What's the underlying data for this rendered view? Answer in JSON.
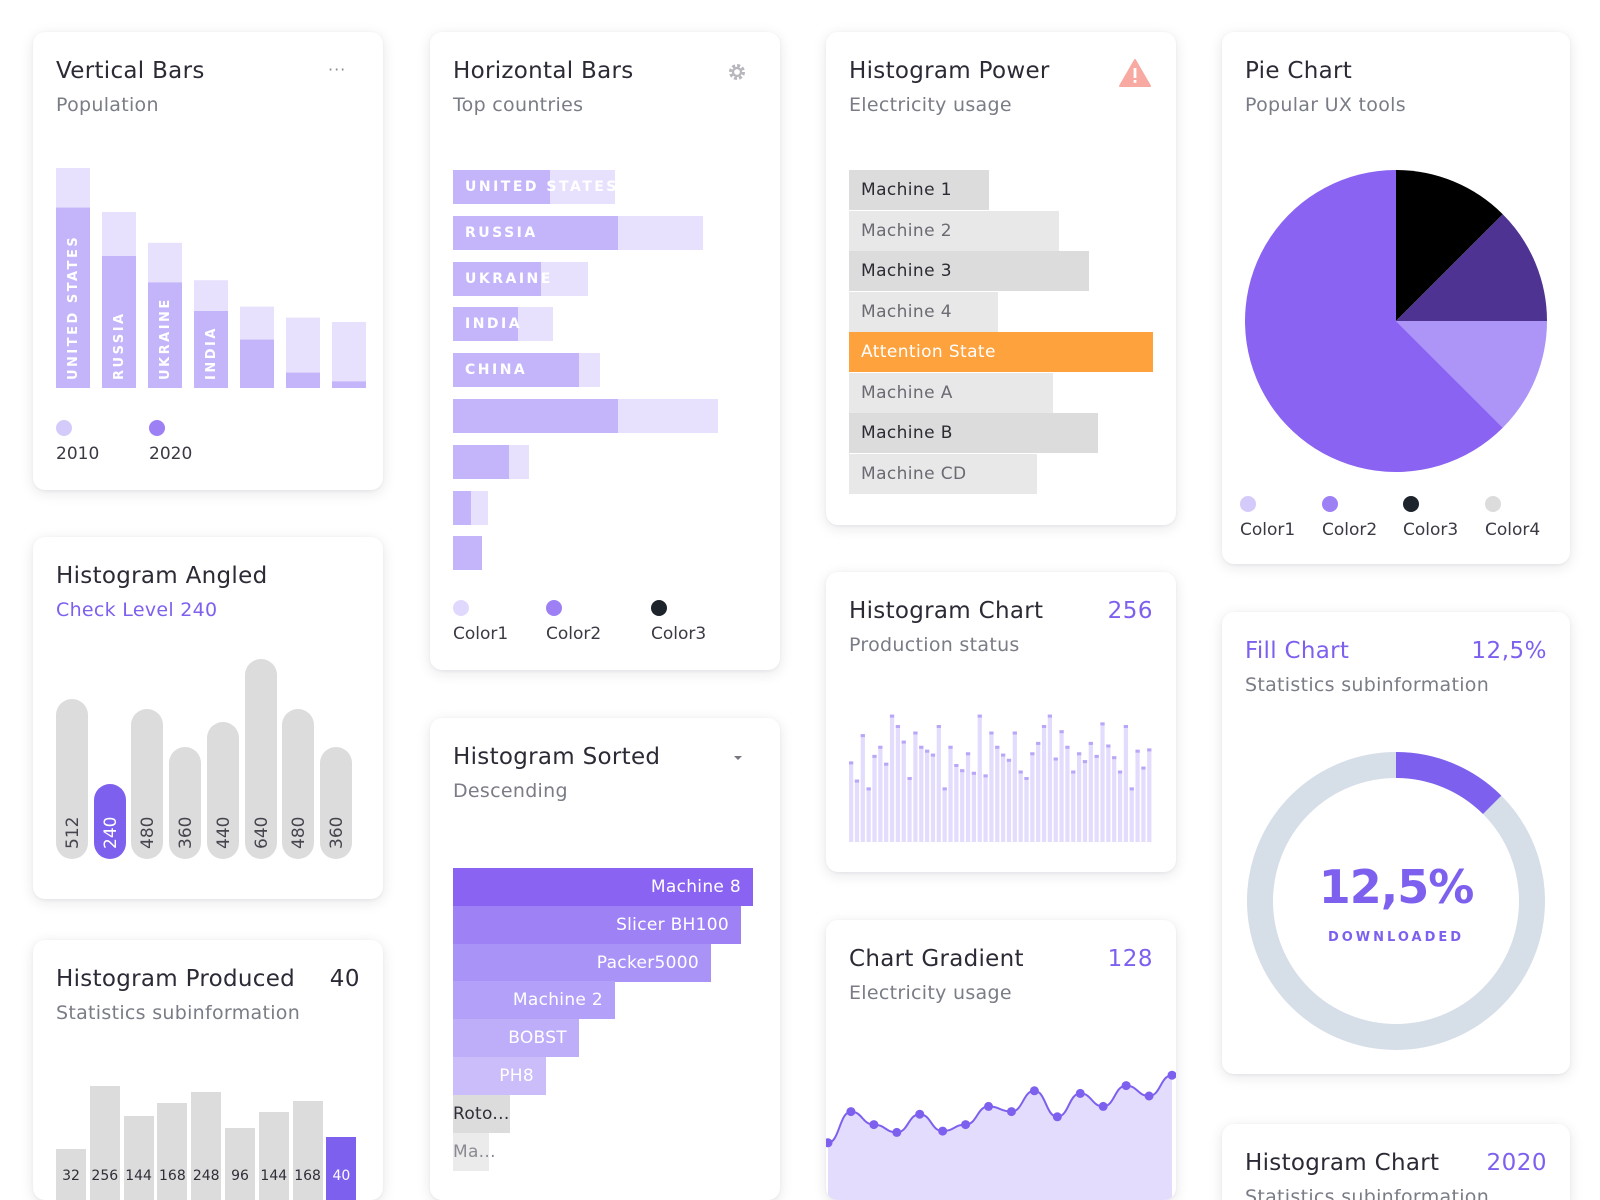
{
  "colors": {
    "accent": "#7e60ee",
    "light": "#c4b5fa",
    "lighter": "#e7e1fd",
    "dark": "#000000",
    "grey": "#dcdcdd",
    "orange": "#fea23e"
  },
  "vertical_bars": {
    "title": "Vertical Bars",
    "subtitle": "Population",
    "menu_icon": "more-horizontal-icon",
    "legend": [
      "2010",
      "2020"
    ]
  },
  "horizontal_bars": {
    "title": "Horizontal Bars",
    "subtitle": "Top countries",
    "settings_icon": "gear-icon",
    "legend": [
      "Color1",
      "Color2",
      "Color3"
    ]
  },
  "histogram_power": {
    "title": "Histogram Power",
    "subtitle": "Electricity usage",
    "warning_icon": "warning-icon"
  },
  "pie_chart": {
    "title": "Pie Chart",
    "subtitle": "Popular UX tools",
    "legend": [
      "Color1",
      "Color2",
      "Color3",
      "Color4"
    ]
  },
  "histogram_angled": {
    "title": "Histogram Angled",
    "subtitle": "Check Level 240"
  },
  "histogram_sorted": {
    "title": "Histogram Sorted",
    "subtitle": "Descending",
    "dropdown_icon": "caret-down-icon"
  },
  "histogram_chart": {
    "title": "Histogram Chart",
    "subtitle": "Production status",
    "value": "256"
  },
  "fill_chart": {
    "title": "Fill Chart",
    "subtitle": "Statistics subinformation",
    "value": "12,5%",
    "center_value": "12,5%",
    "center_label": "DOWNLOADED"
  },
  "histogram_produced": {
    "title": "Histogram Produced",
    "subtitle": "Statistics subinformation",
    "value": "40"
  },
  "chart_gradient": {
    "title": "Chart Gradient",
    "subtitle": "Electricity usage",
    "value": "128"
  },
  "histogram_chart_2020": {
    "title": "Histogram Chart",
    "subtitle": "Statistics subinformation",
    "value": "2020"
  },
  "chart_data": [
    {
      "id": "vertical_bars",
      "type": "bar",
      "title": "Vertical Bars",
      "categories": [
        "UNITED STATES",
        "RUSSIA",
        "UKRAINE",
        "INDIA",
        "",
        "",
        ""
      ],
      "series": [
        {
          "name": "2010",
          "values": [
            100,
            80,
            66,
            49,
            37,
            32,
            30
          ]
        },
        {
          "name": "2020",
          "values": [
            82,
            60,
            48,
            35,
            22,
            7,
            3
          ]
        }
      ],
      "ylim": [
        0,
        100
      ]
    },
    {
      "id": "horizontal_bars",
      "type": "bar",
      "title": "Horizontal Bars",
      "categories": [
        "UNITED STATES",
        "RUSSIA",
        "UKRAINE",
        "INDIA",
        "CHINA",
        "",
        "",
        "",
        ""
      ],
      "series": [
        {
          "name": "Color1",
          "values": [
            55,
            85,
            46,
            34,
            50,
            90,
            26,
            12,
            10
          ]
        },
        {
          "name": "Color2",
          "values": [
            33,
            56,
            30,
            22,
            43,
            56,
            19,
            6,
            10
          ]
        }
      ],
      "xlim": [
        0,
        100
      ]
    },
    {
      "id": "histogram_power",
      "type": "bar",
      "title": "Histogram Power",
      "categories": [
        "Machine 1",
        "Machine 2",
        "Machine 3",
        "Machine 4",
        "Attention State",
        "Machine A",
        "Machine B",
        "Machine CD"
      ],
      "values": [
        46,
        69,
        79,
        49,
        100,
        67,
        82,
        62
      ],
      "xlim": [
        0,
        100
      ]
    },
    {
      "id": "pie_chart",
      "type": "pie",
      "title": "Pie Chart",
      "labels": [
        "Color1",
        "Color2",
        "Color3",
        "Color4"
      ],
      "values": [
        12.5,
        62.5,
        12.5,
        12.5
      ]
    },
    {
      "id": "histogram_angled",
      "type": "bar",
      "title": "Histogram Angled",
      "categories": [
        "512",
        "240",
        "480",
        "360",
        "440",
        "640",
        "480",
        "360"
      ],
      "values": [
        512,
        240,
        480,
        360,
        440,
        640,
        480,
        360
      ],
      "ylim": [
        0,
        640
      ]
    },
    {
      "id": "histogram_sorted",
      "type": "bar",
      "title": "Histogram Sorted",
      "categories": [
        "Machine 8",
        "Slicer BH100",
        "Packer5000",
        "Machine 2",
        "BOBST",
        "PH8",
        "Roto...",
        "Ma..."
      ],
      "values": [
        100,
        96,
        86,
        54,
        42,
        31,
        19,
        12
      ],
      "xlim": [
        0,
        100
      ]
    },
    {
      "id": "histogram_chart",
      "type": "bar",
      "title": "Histogram Chart",
      "values": [
        62,
        48,
        83,
        42,
        67,
        74,
        61,
        98,
        90,
        78,
        50,
        85,
        74,
        71,
        68,
        90,
        42,
        74,
        60,
        56,
        69,
        54,
        98,
        52,
        85,
        74,
        68,
        64,
        85,
        55,
        50,
        69,
        77,
        90,
        98,
        65,
        86,
        74,
        55,
        69,
        63,
        77,
        67,
        92,
        75,
        66,
        55,
        90,
        42,
        71,
        58,
        72
      ],
      "ylim": [
        0,
        100
      ]
    },
    {
      "id": "histogram_produced",
      "type": "bar",
      "title": "Histogram Produced",
      "categories": [
        "32",
        "256",
        "144",
        "168",
        "248",
        "96",
        "144",
        "168",
        "40"
      ],
      "values": [
        45,
        100,
        74,
        85,
        95,
        63,
        77,
        87,
        55
      ],
      "ylim": [
        0,
        100
      ]
    },
    {
      "id": "chart_gradient",
      "type": "area",
      "title": "Chart Gradient",
      "values": [
        44,
        68,
        58,
        52,
        66,
        53,
        58,
        72,
        68,
        84,
        64,
        82,
        72,
        88,
        80,
        96
      ],
      "ylim": [
        0,
        100
      ]
    }
  ]
}
